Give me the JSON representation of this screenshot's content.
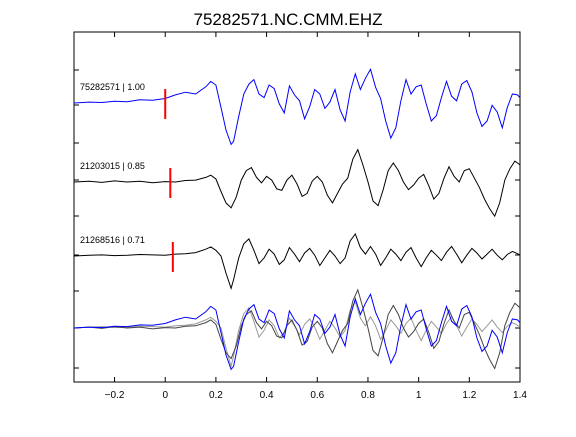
{
  "chart_data": {
    "type": "line",
    "title": "75282571.NC.CMM.EHZ",
    "xlabel": "",
    "ylabel": "",
    "xlim": [
      -0.36,
      1.4
    ],
    "x_ticks": [
      -0.2,
      0,
      0.2,
      0.4,
      0.6,
      0.8,
      1,
      1.2,
      1.4
    ],
    "x_tick_labels": [
      "−0.2",
      "0",
      "0.2",
      "0.4",
      "0.6",
      "0.8",
      "1",
      "1.2",
      "1.4"
    ],
    "grid": false,
    "traces": [
      {
        "label": "75282571 | 1.00",
        "color": "#0000ff",
        "pick_time": 0.0,
        "picks_color": "#ff0000",
        "samples": [
          [
            -0.36,
            0.0
          ],
          [
            -0.3,
            0.02
          ],
          [
            -0.25,
            0.01
          ],
          [
            -0.2,
            0.04
          ],
          [
            -0.15,
            0.03
          ],
          [
            -0.1,
            0.07
          ],
          [
            -0.05,
            0.06
          ],
          [
            0.0,
            0.1
          ],
          [
            0.04,
            0.18
          ],
          [
            0.08,
            0.24
          ],
          [
            0.12,
            0.2
          ],
          [
            0.16,
            0.36
          ],
          [
            0.18,
            0.48
          ],
          [
            0.2,
            0.4
          ],
          [
            0.22,
            -0.1
          ],
          [
            0.24,
            -0.6
          ],
          [
            0.26,
            -0.92
          ],
          [
            0.27,
            -0.85
          ],
          [
            0.29,
            -0.3
          ],
          [
            0.31,
            0.2
          ],
          [
            0.33,
            0.42
          ],
          [
            0.35,
            0.52
          ],
          [
            0.37,
            0.2
          ],
          [
            0.39,
            0.12
          ],
          [
            0.41,
            0.4
          ],
          [
            0.43,
            0.32
          ],
          [
            0.45,
            -0.02
          ],
          [
            0.47,
            -0.22
          ],
          [
            0.49,
            0.38
          ],
          [
            0.51,
            0.18
          ],
          [
            0.53,
            0.05
          ],
          [
            0.55,
            -0.35
          ],
          [
            0.57,
            -0.08
          ],
          [
            0.59,
            0.3
          ],
          [
            0.61,
            0.2
          ],
          [
            0.63,
            -0.12
          ],
          [
            0.65,
            0.02
          ],
          [
            0.67,
            0.3
          ],
          [
            0.69,
            -0.15
          ],
          [
            0.71,
            -0.4
          ],
          [
            0.73,
            0.25
          ],
          [
            0.75,
            0.65
          ],
          [
            0.77,
            0.3
          ],
          [
            0.79,
            0.55
          ],
          [
            0.81,
            0.75
          ],
          [
            0.83,
            0.35
          ],
          [
            0.85,
            0.1
          ],
          [
            0.87,
            -0.4
          ],
          [
            0.89,
            -0.78
          ],
          [
            0.91,
            -0.55
          ],
          [
            0.93,
            0.05
          ],
          [
            0.95,
            0.52
          ],
          [
            0.97,
            0.2
          ],
          [
            0.99,
            0.36
          ],
          [
            1.01,
            0.4
          ],
          [
            1.03,
            -0.02
          ],
          [
            1.05,
            -0.4
          ],
          [
            1.07,
            -0.28
          ],
          [
            1.09,
            0.12
          ],
          [
            1.11,
            0.48
          ],
          [
            1.13,
            0.15
          ],
          [
            1.15,
            0.05
          ],
          [
            1.17,
            0.42
          ],
          [
            1.19,
            0.5
          ],
          [
            1.21,
            0.25
          ],
          [
            1.23,
            -0.22
          ],
          [
            1.25,
            -0.52
          ],
          [
            1.27,
            -0.4
          ],
          [
            1.29,
            -0.05
          ],
          [
            1.31,
            -0.2
          ],
          [
            1.33,
            -0.55
          ],
          [
            1.35,
            -0.1
          ],
          [
            1.37,
            0.2
          ],
          [
            1.39,
            0.18
          ],
          [
            1.4,
            0.12
          ]
        ]
      },
      {
        "label": "21203015 | 0.85",
        "color": "#000000",
        "pick_time": 0.02,
        "picks_color": "#ff0000",
        "samples": [
          [
            -0.36,
            0.0
          ],
          [
            -0.3,
            0.02
          ],
          [
            -0.25,
            -0.01
          ],
          [
            -0.2,
            0.03
          ],
          [
            -0.15,
            0.0
          ],
          [
            -0.1,
            0.02
          ],
          [
            -0.05,
            -0.02
          ],
          [
            0.0,
            0.01
          ],
          [
            0.04,
            0.0
          ],
          [
            0.08,
            0.04
          ],
          [
            0.12,
            0.05
          ],
          [
            0.16,
            0.12
          ],
          [
            0.18,
            0.18
          ],
          [
            0.2,
            0.08
          ],
          [
            0.22,
            -0.25
          ],
          [
            0.24,
            -0.55
          ],
          [
            0.26,
            -0.68
          ],
          [
            0.28,
            -0.4
          ],
          [
            0.3,
            0.05
          ],
          [
            0.32,
            0.3
          ],
          [
            0.34,
            0.38
          ],
          [
            0.36,
            0.12
          ],
          [
            0.38,
            -0.02
          ],
          [
            0.4,
            0.15
          ],
          [
            0.42,
            0.05
          ],
          [
            0.44,
            -0.18
          ],
          [
            0.46,
            -0.22
          ],
          [
            0.48,
            0.05
          ],
          [
            0.5,
            0.18
          ],
          [
            0.52,
            -0.05
          ],
          [
            0.54,
            -0.38
          ],
          [
            0.56,
            -0.3
          ],
          [
            0.58,
            0.02
          ],
          [
            0.6,
            0.15
          ],
          [
            0.62,
            0.0
          ],
          [
            0.64,
            -0.35
          ],
          [
            0.66,
            -0.55
          ],
          [
            0.68,
            -0.3
          ],
          [
            0.7,
            -0.05
          ],
          [
            0.72,
            0.1
          ],
          [
            0.74,
            0.6
          ],
          [
            0.76,
            0.85
          ],
          [
            0.78,
            0.45
          ],
          [
            0.8,
            0.0
          ],
          [
            0.82,
            -0.5
          ],
          [
            0.84,
            -0.62
          ],
          [
            0.86,
            -0.2
          ],
          [
            0.88,
            0.3
          ],
          [
            0.9,
            0.5
          ],
          [
            0.92,
            0.3
          ],
          [
            0.94,
            0.0
          ],
          [
            0.96,
            -0.2
          ],
          [
            0.98,
            -0.08
          ],
          [
            1.0,
            0.1
          ],
          [
            1.02,
            0.2
          ],
          [
            1.04,
            -0.1
          ],
          [
            1.06,
            -0.45
          ],
          [
            1.08,
            -0.3
          ],
          [
            1.1,
            0.1
          ],
          [
            1.12,
            0.4
          ],
          [
            1.14,
            0.15
          ],
          [
            1.16,
            0.0
          ],
          [
            1.18,
            0.3
          ],
          [
            1.2,
            0.35
          ],
          [
            1.22,
            0.1
          ],
          [
            1.24,
            -0.15
          ],
          [
            1.26,
            -0.45
          ],
          [
            1.28,
            -0.7
          ],
          [
            1.3,
            -0.9
          ],
          [
            1.32,
            -0.55
          ],
          [
            1.34,
            0.05
          ],
          [
            1.36,
            0.35
          ],
          [
            1.38,
            0.55
          ],
          [
            1.4,
            0.45
          ]
        ]
      },
      {
        "label": "21268516 | 0.71",
        "color": "#000000",
        "pick_time": 0.03,
        "picks_color": "#ff0000",
        "samples": [
          [
            -0.36,
            0.0
          ],
          [
            -0.3,
            0.02
          ],
          [
            -0.25,
            0.03
          ],
          [
            -0.2,
            0.01
          ],
          [
            -0.15,
            0.02
          ],
          [
            -0.1,
            0.04
          ],
          [
            -0.05,
            0.03
          ],
          [
            0.0,
            0.02
          ],
          [
            0.04,
            0.05
          ],
          [
            0.08,
            0.06
          ],
          [
            0.12,
            0.09
          ],
          [
            0.16,
            0.18
          ],
          [
            0.18,
            0.24
          ],
          [
            0.2,
            0.15
          ],
          [
            0.22,
            0.0
          ],
          [
            0.24,
            -0.45
          ],
          [
            0.26,
            -0.85
          ],
          [
            0.27,
            -0.62
          ],
          [
            0.29,
            -0.05
          ],
          [
            0.31,
            0.32
          ],
          [
            0.33,
            0.45
          ],
          [
            0.35,
            0.15
          ],
          [
            0.37,
            -0.2
          ],
          [
            0.39,
            -0.05
          ],
          [
            0.41,
            0.18
          ],
          [
            0.43,
            0.05
          ],
          [
            0.45,
            -0.22
          ],
          [
            0.47,
            -0.1
          ],
          [
            0.49,
            0.22
          ],
          [
            0.51,
            0.05
          ],
          [
            0.53,
            -0.15
          ],
          [
            0.55,
            0.08
          ],
          [
            0.57,
            0.2
          ],
          [
            0.59,
            0.02
          ],
          [
            0.61,
            -0.25
          ],
          [
            0.63,
            -0.05
          ],
          [
            0.65,
            0.15
          ],
          [
            0.67,
            0.0
          ],
          [
            0.69,
            -0.2
          ],
          [
            0.71,
            -0.05
          ],
          [
            0.73,
            0.4
          ],
          [
            0.75,
            0.58
          ],
          [
            0.77,
            0.22
          ],
          [
            0.79,
            0.05
          ],
          [
            0.81,
            0.25
          ],
          [
            0.83,
            0.05
          ],
          [
            0.85,
            -0.25
          ],
          [
            0.87,
            -0.05
          ],
          [
            0.89,
            0.18
          ],
          [
            0.91,
            0.05
          ],
          [
            0.93,
            -0.12
          ],
          [
            0.95,
            0.1
          ],
          [
            0.97,
            0.22
          ],
          [
            0.99,
            -0.05
          ],
          [
            1.01,
            -0.28
          ],
          [
            1.03,
            -0.05
          ],
          [
            1.05,
            0.15
          ],
          [
            1.07,
            0.02
          ],
          [
            1.09,
            -0.12
          ],
          [
            1.11,
            0.1
          ],
          [
            1.13,
            0.25
          ],
          [
            1.15,
            0.05
          ],
          [
            1.17,
            -0.18
          ],
          [
            1.19,
            0.02
          ],
          [
            1.21,
            0.2
          ],
          [
            1.23,
            0.08
          ],
          [
            1.25,
            -0.08
          ],
          [
            1.27,
            0.05
          ],
          [
            1.29,
            0.18
          ],
          [
            1.31,
            0.02
          ],
          [
            1.33,
            -0.1
          ],
          [
            1.35,
            0.04
          ],
          [
            1.37,
            0.12
          ],
          [
            1.39,
            0.06
          ],
          [
            1.4,
            0.02
          ]
        ]
      }
    ],
    "overlay_colors": [
      "#0000ff",
      "#444444",
      "#999999"
    ]
  }
}
